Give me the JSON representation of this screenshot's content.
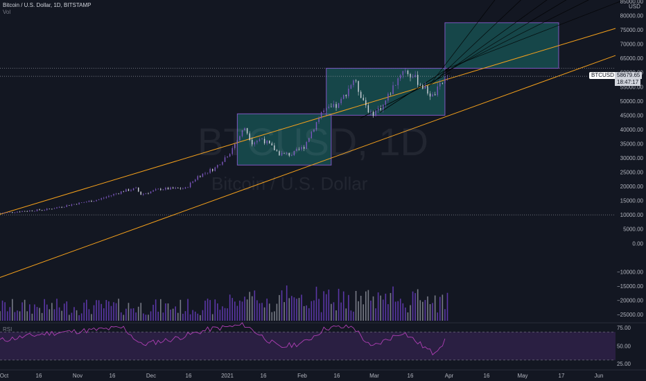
{
  "header": {
    "symbol_line": "Bitcoin / U.S. Dollar, 1D, BITSTAMP",
    "volume_label": "Vol"
  },
  "watermark": {
    "ticker": "BTCUSD, 1D",
    "name": "Bitcoin / U.S. Dollar"
  },
  "price_axis": {
    "currency": "USD",
    "ticks": [
      "85000.00",
      "80000.00",
      "75000.00",
      "70000.00",
      "65000.00",
      "60000.00",
      "55000.00",
      "50000.00",
      "45000.00",
      "40000.00",
      "35000.00",
      "30000.00",
      "25000.00",
      "20000.00",
      "15000.00",
      "10000.00",
      "5000.00",
      "0.00",
      "−10000.00",
      "−15000.00",
      "−20000.00",
      "−25000.00"
    ]
  },
  "rsi": {
    "label": "RSI",
    "ticks": [
      "75.00",
      "50.00",
      "25.00"
    ],
    "upper": 70,
    "lower": 30
  },
  "time_axis": {
    "labels": [
      "Oct",
      "16",
      "Nov",
      "16",
      "Dec",
      "16",
      "2021",
      "16",
      "Feb",
      "16",
      "Mar",
      "16",
      "Apr",
      "16",
      "May",
      "17",
      "Jun"
    ]
  },
  "last_price": {
    "symbol": "BTCUSD",
    "price": "58679.65",
    "countdown": "18:47:17"
  },
  "colors": {
    "background": "#131722",
    "up": "#7e57c2",
    "down": "#d1d4dc",
    "channel": "#f7a21b",
    "box_fill": "#1a6e6a",
    "box_border": "#7e57c2",
    "rsi_line": "#b03fb5",
    "rsi_band": "#2a1f42",
    "volume_up": "#5b37a6",
    "volume_down": "#787b86"
  },
  "chart_data": {
    "type": "candlestick",
    "x_range": [
      "2020-10-01",
      "2021-06-07"
    ],
    "ylim": [
      -28000,
      86000
    ],
    "log_scale": false,
    "grid": false,
    "price_path": [
      [
        "2020-10-01",
        10600
      ],
      [
        "2020-10-10",
        11300
      ],
      [
        "2020-10-20",
        11900
      ],
      [
        "2020-10-31",
        13800
      ],
      [
        "2020-11-10",
        15400
      ],
      [
        "2020-11-20",
        18400
      ],
      [
        "2020-11-25",
        19200
      ],
      [
        "2020-11-27",
        17200
      ],
      [
        "2020-12-05",
        19100
      ],
      [
        "2020-12-15",
        19300
      ],
      [
        "2020-12-20",
        23500
      ],
      [
        "2020-12-27",
        26500
      ],
      [
        "2021-01-02",
        32000
      ],
      [
        "2021-01-08",
        40700
      ],
      [
        "2021-01-11",
        35500
      ],
      [
        "2021-01-15",
        36800
      ],
      [
        "2021-01-22",
        31500
      ],
      [
        "2021-01-27",
        31200
      ],
      [
        "2021-02-01",
        34000
      ],
      [
        "2021-02-08",
        46000
      ],
      [
        "2021-02-15",
        48500
      ],
      [
        "2021-02-21",
        57500
      ],
      [
        "2021-02-28",
        45200
      ],
      [
        "2021-03-05",
        48500
      ],
      [
        "2021-03-13",
        61200
      ],
      [
        "2021-03-18",
        57800
      ],
      [
        "2021-03-25",
        51500
      ],
      [
        "2021-03-31",
        58700
      ]
    ],
    "channel_lines": [
      {
        "from": [
          "2020-10-01",
          10200
        ],
        "to": [
          "2021-06-07",
          75500
        ]
      },
      {
        "from": [
          "2020-10-01",
          -12000
        ],
        "to": [
          "2021-06-07",
          66000
        ]
      }
    ],
    "boxes": [
      {
        "from": [
          "2021-01-05",
          27500
        ],
        "to": [
          "2021-02-12",
          45500
        ]
      },
      {
        "from": [
          "2021-02-10",
          45000
        ],
        "to": [
          "2021-03-30",
          61500
        ]
      },
      {
        "from": [
          "2021-03-30",
          61500
        ],
        "to": [
          "2021-05-15",
          77500
        ]
      }
    ],
    "horizontal_lines": [
      61500,
      10000
    ],
    "rsi_path": [
      [
        "2020-10-01",
        58
      ],
      [
        "2020-10-20",
        68
      ],
      [
        "2020-11-05",
        72
      ],
      [
        "2020-11-20",
        76
      ],
      [
        "2020-11-27",
        52
      ],
      [
        "2020-12-10",
        60
      ],
      [
        "2020-12-25",
        74
      ],
      [
        "2021-01-08",
        80
      ],
      [
        "2021-01-22",
        48
      ],
      [
        "2021-02-01",
        55
      ],
      [
        "2021-02-10",
        76
      ],
      [
        "2021-02-21",
        77
      ],
      [
        "2021-02-28",
        48
      ],
      [
        "2021-03-13",
        70
      ],
      [
        "2021-03-25",
        40
      ],
      [
        "2021-03-31",
        60
      ]
    ]
  }
}
